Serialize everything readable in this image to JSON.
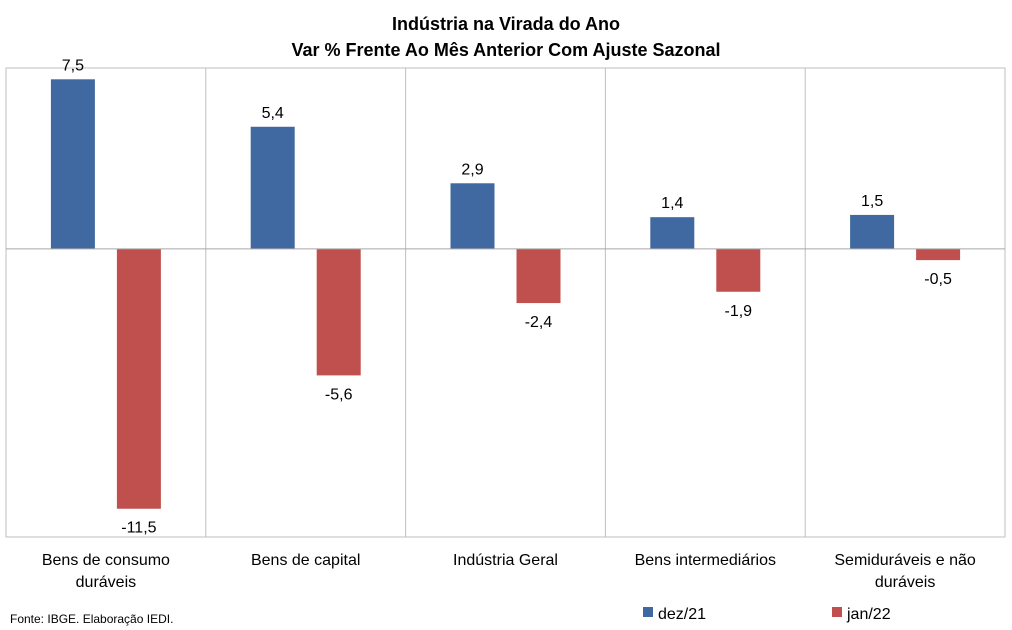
{
  "chart_data": {
    "type": "bar",
    "title": "Indústria  na Virada do Ano",
    "subtitle": "Var % Frente Ao Mês Anterior Com Ajuste Sazonal",
    "categories": [
      [
        "Bens de consumo",
        "duráveis"
      ],
      [
        "Bens de capital"
      ],
      [
        "Indústria Geral"
      ],
      [
        "Bens intermediários"
      ],
      [
        "Semiduráveis e não",
        "duráveis"
      ]
    ],
    "series": [
      {
        "name": "dez/21",
        "color": "#4169A1",
        "values": [
          7.5,
          5.4,
          2.9,
          1.4,
          1.5
        ],
        "labels": [
          "7,5",
          "5,4",
          "2,9",
          "1,4",
          "1,5"
        ]
      },
      {
        "name": "jan/22",
        "color": "#C0504D",
        "values": [
          -11.5,
          -5.6,
          -2.4,
          -1.9,
          -0.5
        ],
        "labels": [
          "-11,5",
          "-5,6",
          "-2,4",
          "-1,9",
          "-0,5"
        ]
      }
    ],
    "ylim": [
      -12.75,
      8.0
    ],
    "legend_position": "bottom-right",
    "grid": false
  },
  "footnote": "Fonte: IBGE. Elaboração IEDI."
}
